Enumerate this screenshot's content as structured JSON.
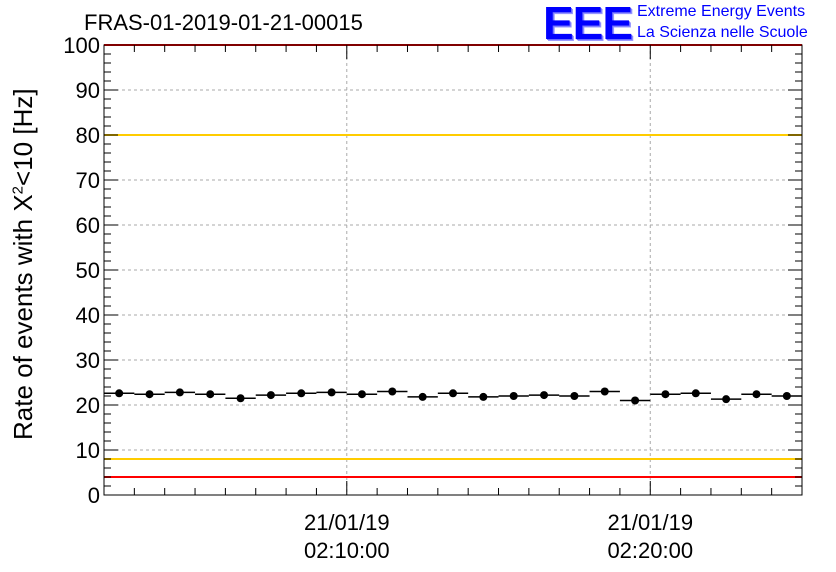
{
  "title": "FRAS-01-2019-01-21-00015",
  "logo": {
    "mark": "EEE",
    "line1": "Extreme Energy Events",
    "line2": "La Scienza nelle Scuole"
  },
  "colors": {
    "data_points": "#000000",
    "limit_outer": "#ff0000",
    "limit_inner": "#ffcc00",
    "logo": "#0000ff",
    "grid": "#aaaaaa"
  },
  "chart_data": {
    "type": "scatter",
    "title": "FRAS-01-2019-01-21-00015",
    "ylabel_prefix": "Rate of events with Χ",
    "ylabel_sup": "2",
    "ylabel_suffix": "<10 [Hz]",
    "ylim": [
      0,
      100
    ],
    "y_ticks": [
      "0",
      "10",
      "20",
      "30",
      "40",
      "50",
      "60",
      "70",
      "80",
      "90",
      "100"
    ],
    "x_time_range": [
      "02:02:00",
      "02:25:00"
    ],
    "x_ticks": [
      {
        "time": "02:10:00",
        "line1": "21/01/19",
        "line2": "02:10:00"
      },
      {
        "time": "02:20:00",
        "line1": "21/01/19",
        "line2": "02:20:00"
      }
    ],
    "grid": true,
    "reference_lines": [
      {
        "y": 100,
        "color": "#ff0000"
      },
      {
        "y": 80,
        "color": "#ffcc00"
      },
      {
        "y": 8,
        "color": "#ffcc00"
      },
      {
        "y": 4,
        "color": "#ff0000"
      }
    ],
    "series": [
      {
        "x": [
          "02:02:30",
          "02:03:30",
          "02:04:30",
          "02:05:30",
          "02:06:30",
          "02:07:30",
          "02:08:30",
          "02:09:30",
          "02:10:30",
          "02:11:30",
          "02:12:30",
          "02:13:30",
          "02:14:30",
          "02:15:30",
          "02:16:30",
          "02:17:30",
          "02:18:30",
          "02:19:30",
          "02:20:30",
          "02:21:30",
          "02:22:30",
          "02:23:30",
          "02:24:30"
        ],
        "y": [
          22.6,
          22.4,
          22.8,
          22.4,
          21.5,
          22.2,
          22.6,
          22.8,
          22.4,
          23.0,
          21.8,
          22.6,
          21.8,
          22.0,
          22.2,
          22.0,
          23.0,
          21.0,
          22.4,
          22.6,
          21.3,
          22.4,
          22.0
        ]
      }
    ]
  }
}
